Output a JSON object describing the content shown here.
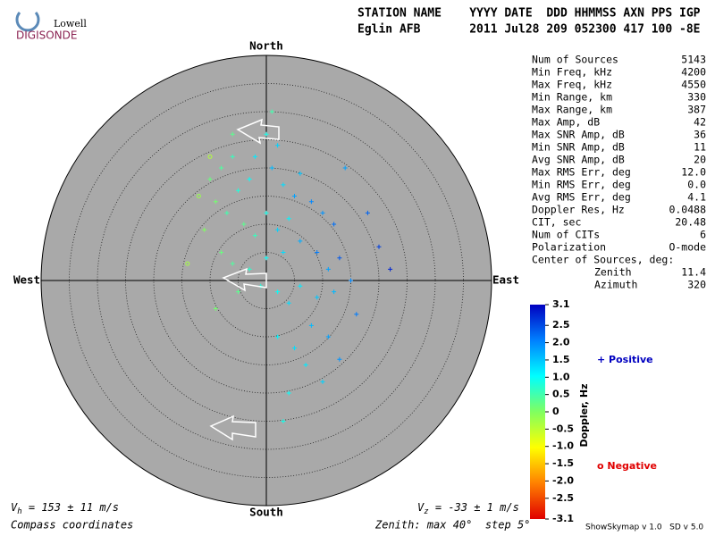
{
  "chart_data": {
    "type": "skymap",
    "logo": {
      "line1": "Lowell",
      "line2": "DIGISONDE"
    },
    "header": {
      "row1": "STATION NAME    YYYY DATE  DDD HHMMSS AXN PPS IGP",
      "row2": "Eglin AFB       2011 Jul28 209 052300 417 100 -8E"
    },
    "compass": {
      "north": "North",
      "south": "South",
      "west": "West",
      "east": "East"
    },
    "zenith_max": 40,
    "zenith_step": 5,
    "stats": [
      [
        "Num of Sources",
        "5143"
      ],
      [
        "Min Freq, kHz",
        "4200"
      ],
      [
        "Max Freq, kHz",
        "4550"
      ],
      [
        "Min Range, km",
        "330"
      ],
      [
        "Max Range, km",
        "387"
      ],
      [
        "Max Amp, dB",
        "42"
      ],
      [
        "Max SNR Amp, dB",
        "36"
      ],
      [
        "Min SNR Amp, dB",
        "11"
      ],
      [
        "Avg SNR Amp, dB",
        "20"
      ],
      [
        "Max RMS Err, deg",
        "12.0"
      ],
      [
        "Min RMS Err, deg",
        "0.0"
      ],
      [
        "Avg RMS Err, deg",
        "4.1"
      ],
      [
        "Doppler Res, Hz",
        "0.0488"
      ],
      [
        "CIT, sec",
        "20.48"
      ],
      [
        "Num of CITs",
        "6"
      ],
      [
        "Polarization",
        "O-mode"
      ]
    ],
    "center_title": "Center of Sources, deg:",
    "center": [
      [
        "Zenith",
        "11.4"
      ],
      [
        "Azimuth",
        "320"
      ]
    ],
    "colorbar": {
      "label": "Doppler, Hz",
      "lim": [
        -3.1,
        3.1
      ],
      "colors": [
        "#e00000",
        "#ff8000",
        "#ffff00",
        "#80ff60",
        "#00ffff",
        "#0080ff",
        "#0000c0"
      ],
      "ticks": [
        3.1,
        2.5,
        {
          "value": 2,
          "label": "2.0"
        },
        1.5,
        {
          "value": 1,
          "label": "1.0"
        },
        0.5,
        0,
        -0.5,
        {
          "value": -1,
          "label": "-1.0"
        },
        -1.5,
        {
          "value": -2,
          "label": "-2.0"
        },
        -2.5,
        -3.1
      ]
    },
    "legend": {
      "positive": "+ Positive",
      "negative": "o Negative",
      "positive_color": "#0000c0",
      "negative_color": "#e00000"
    },
    "vh": {
      "symbol": "V",
      "sub": "h",
      "text": " = 153 ± 11 m/s"
    },
    "vz": {
      "symbol": "V",
      "sub": "z",
      "text": " = -33 ± 1 m/s"
    },
    "footer_left": "Compass coordinates",
    "footer_mid": "Zenith: max 40°  step 5°",
    "footer_right": "ShowSkymap v 1.0   SD v 5.0",
    "points": {
      "east": [
        -10,
        -8,
        -6,
        -9,
        -7,
        -5,
        -3,
        -2,
        0,
        2,
        1,
        3,
        5,
        6,
        8,
        10,
        12,
        4,
        2,
        0,
        -2,
        -4,
        -11,
        -12,
        -8,
        -6,
        -3,
        0,
        3,
        6,
        9,
        11,
        13,
        15,
        12,
        9,
        6,
        4,
        2,
        -1,
        -5,
        -9,
        8,
        11,
        5,
        2,
        7,
        10,
        4,
        13,
        16,
        20,
        18,
        22,
        1,
        -6,
        14,
        -14,
        3,
        -10
      ],
      "north": [
        18,
        20,
        22,
        14,
        12,
        16,
        18,
        22,
        26,
        24,
        20,
        17,
        15,
        19,
        14,
        12,
        10,
        11,
        9,
        12,
        8,
        10,
        9,
        15,
        5,
        3,
        2,
        4,
        5,
        7,
        5,
        2,
        4,
        0,
        -2,
        -3,
        -1,
        -4,
        -2,
        -1,
        -2,
        -5,
        -8,
        -10,
        -12,
        -10,
        -15,
        -18,
        -20,
        -14,
        -6,
        6,
        12,
        2,
        30,
        26,
        20,
        3,
        -25,
        22
      ],
      "doppler": [
        0.2,
        0.4,
        0.6,
        0.1,
        0.5,
        0.8,
        1.0,
        1.2,
        0.9,
        1.4,
        1.6,
        1.3,
        1.8,
        1.5,
        2.0,
        1.9,
        2.2,
        1.1,
        1.4,
        0.9,
        0.6,
        0.3,
        0.0,
        -0.2,
        0.2,
        0.4,
        0.7,
        1.0,
        1.3,
        1.7,
        2.1,
        1.8,
        2.4,
        2.0,
        1.6,
        1.5,
        1.2,
        1.3,
        1.0,
        0.8,
        0.3,
        0.1,
        1.6,
        1.8,
        1.3,
        1.1,
        1.2,
        1.4,
        1.0,
        1.9,
        2.1,
        2.6,
        2.3,
        2.8,
        0.5,
        0.3,
        1.8,
        -0.3,
        0.9,
        -0.4
      ]
    }
  }
}
